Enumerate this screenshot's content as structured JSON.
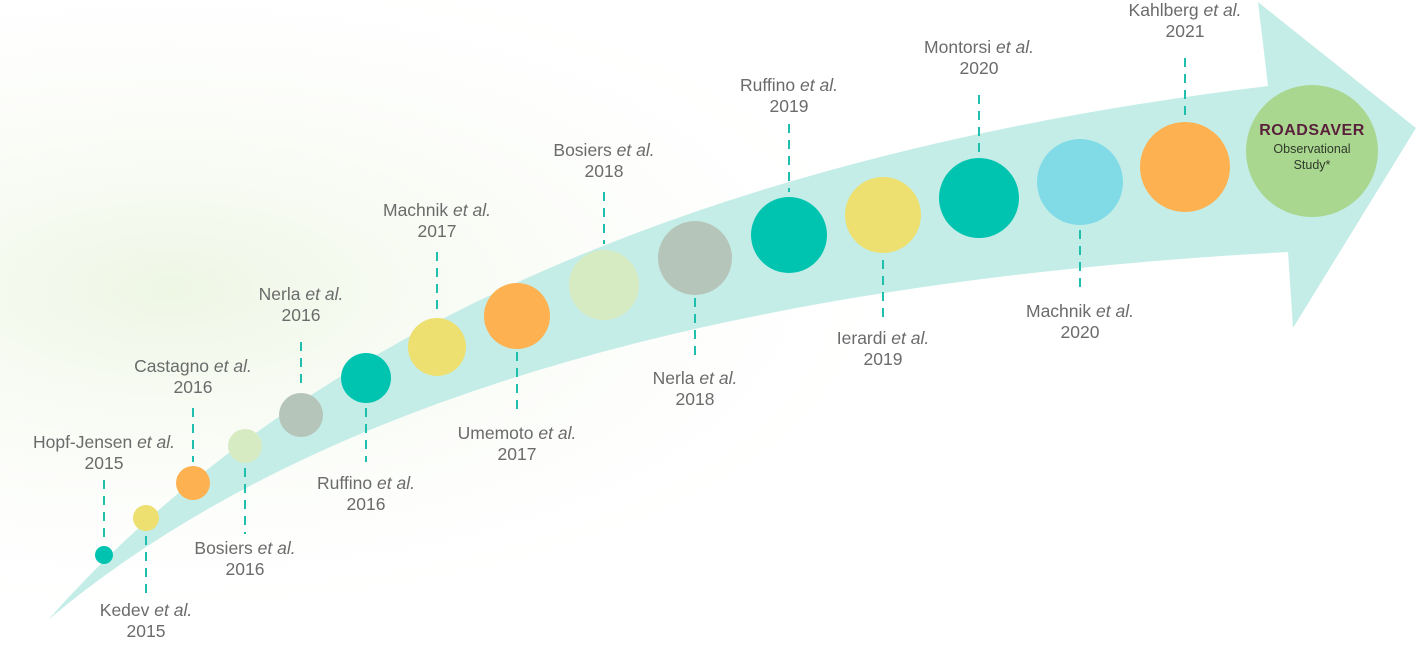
{
  "colors": {
    "arrow": "#c5ede8",
    "background_tint": "#eef6e4",
    "connector": "#1fbfad"
  },
  "center": {
    "title": "ROADSAVER",
    "subtitle_line1": "Observational",
    "subtitle_line2": "Study*",
    "color": "#a9d78f"
  },
  "studies": [
    {
      "author": "Hopf-Jensen",
      "suffix": "et al.",
      "year": "2015",
      "color": "#00c4b0"
    },
    {
      "author": "Kedev",
      "suffix": "et al.",
      "year": "2015",
      "color": "#ede070"
    },
    {
      "author": "Castagno",
      "suffix": "et al.",
      "year": "2016",
      "color": "#fdb150"
    },
    {
      "author": "Bosiers",
      "suffix": "et al.",
      "year": "2016",
      "color": "#d7ebc3"
    },
    {
      "author": "Nerla",
      "suffix": "et al.",
      "year": "2016",
      "color": "#b6c5b9"
    },
    {
      "author": "Ruffino",
      "suffix": "et al.",
      "year": "2016",
      "color": "#00c4b0"
    },
    {
      "author": "Machnik",
      "suffix": "et al.",
      "year": "2017",
      "color": "#ede070"
    },
    {
      "author": "Umemoto",
      "suffix": "et al.",
      "year": "2017",
      "color": "#fdb150"
    },
    {
      "author": "Bosiers",
      "suffix": "et al.",
      "year": "2018",
      "color": "#d7ebc3"
    },
    {
      "author": "Nerla",
      "suffix": "et al.",
      "year": "2018",
      "color": "#b6c5b9"
    },
    {
      "author": "Ruffino",
      "suffix": "et al.",
      "year": "2019",
      "color": "#00c4b0"
    },
    {
      "author": "Ierardi",
      "suffix": "et al.",
      "year": "2019",
      "color": "#ede070"
    },
    {
      "author": "Montorsi",
      "suffix": "et al.",
      "year": "2020",
      "color": "#00c4b0"
    },
    {
      "author": "Machnik",
      "suffix": "et al.",
      "year": "2020",
      "color": "#80dbe6"
    },
    {
      "author": "Kahlberg",
      "suffix": "et al.",
      "year": "2021",
      "color": "#fdb150"
    }
  ]
}
